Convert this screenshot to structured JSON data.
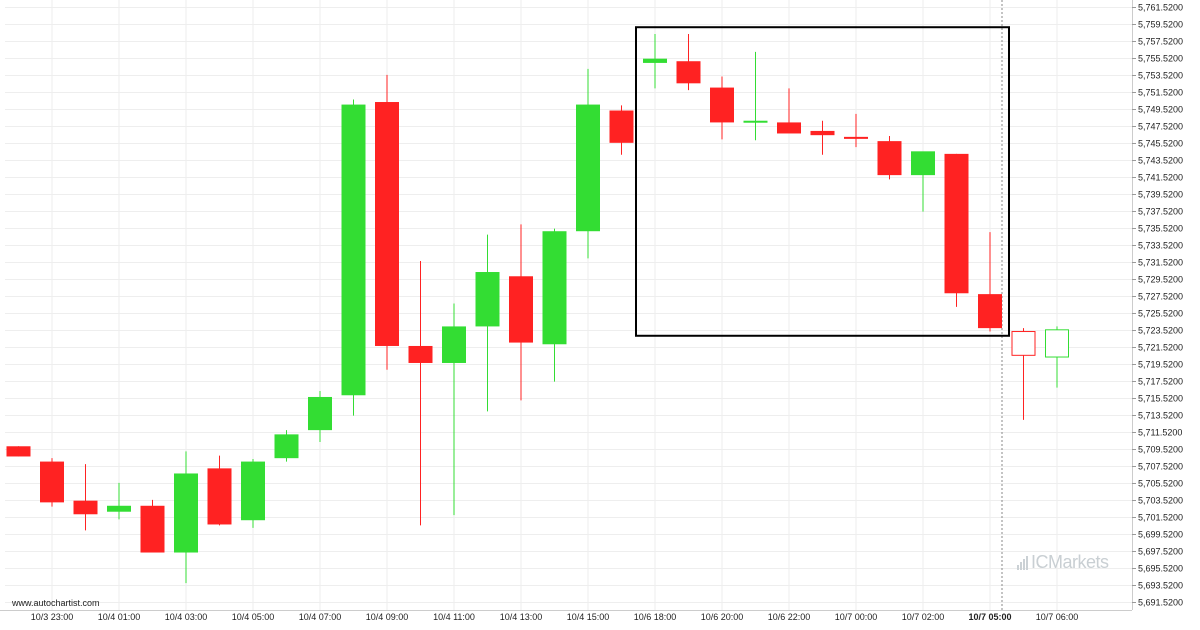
{
  "credit": "www.autochartist.com",
  "brand": {
    "prefix": "IC",
    "name": "Markets"
  },
  "colors": {
    "up": "#33dd33",
    "down": "#ff2222",
    "grid": "#eeeeee",
    "box": "#000000",
    "marker": "#888888"
  },
  "chart_data": {
    "type": "candlestick",
    "ylim": [
      5690.52,
      5762.52
    ],
    "y_ticks": [
      "5,691.5200",
      "5,693.5200",
      "5,695.5200",
      "5,697.5200",
      "5,699.5200",
      "5,701.5200",
      "5,703.5200",
      "5,705.5200",
      "5,707.5200",
      "5,709.5200",
      "5,711.5200",
      "5,713.5200",
      "5,715.5200",
      "5,717.5200",
      "5,719.5200",
      "5,721.5200",
      "5,723.5200",
      "5,725.5200",
      "5,727.5200",
      "5,729.5200",
      "5,731.5200",
      "5,733.5200",
      "5,735.5200",
      "5,737.5200",
      "5,739.5200",
      "5,741.5200",
      "5,743.5200",
      "5,745.5200",
      "5,747.5200",
      "5,749.5200",
      "5,751.5200",
      "5,753.5200",
      "5,755.5200",
      "5,757.5200",
      "5,759.5200",
      "5,761.5200"
    ],
    "x_ticks": [
      {
        "index": 1,
        "label": "10/3 23:00"
      },
      {
        "index": 3,
        "label": "10/4 01:00"
      },
      {
        "index": 5,
        "label": "10/4 03:00"
      },
      {
        "index": 7,
        "label": "10/4 05:00"
      },
      {
        "index": 9,
        "label": "10/4 07:00"
      },
      {
        "index": 11,
        "label": "10/4 09:00"
      },
      {
        "index": 13,
        "label": "10/4 11:00"
      },
      {
        "index": 15,
        "label": "10/4 13:00"
      },
      {
        "index": 17,
        "label": "10/4 15:00"
      },
      {
        "index": 19,
        "label": "10/6 18:00"
      },
      {
        "index": 21,
        "label": "10/6 20:00"
      },
      {
        "index": 23,
        "label": "10/6 22:00"
      },
      {
        "index": 25,
        "label": "10/7 00:00"
      },
      {
        "index": 27,
        "label": "10/7 02:00"
      },
      {
        "index": 29,
        "label": "10/7 05:00",
        "bold": true
      },
      {
        "index": 31,
        "label": "10/7 06:00"
      }
    ],
    "candles": [
      {
        "o": 5709.9,
        "h": 5709.9,
        "l": 5708.7,
        "c": 5708.7
      },
      {
        "o": 5708.1,
        "h": 5708.5,
        "l": 5702.8,
        "c": 5703.3
      },
      {
        "o": 5703.5,
        "h": 5707.8,
        "l": 5700.0,
        "c": 5701.9
      },
      {
        "o": 5702.2,
        "h": 5705.6,
        "l": 5701.3,
        "c": 5702.9
      },
      {
        "o": 5702.9,
        "h": 5703.6,
        "l": 5697.4,
        "c": 5697.4
      },
      {
        "o": 5697.4,
        "h": 5709.3,
        "l": 5693.8,
        "c": 5706.7
      },
      {
        "o": 5707.3,
        "h": 5708.8,
        "l": 5700.6,
        "c": 5700.7
      },
      {
        "o": 5701.2,
        "h": 5708.4,
        "l": 5700.3,
        "c": 5708.1
      },
      {
        "o": 5708.5,
        "h": 5711.8,
        "l": 5708.1,
        "c": 5711.3
      },
      {
        "o": 5711.8,
        "h": 5716.4,
        "l": 5710.4,
        "c": 5715.7
      },
      {
        "o": 5715.9,
        "h": 5750.7,
        "l": 5713.5,
        "c": 5750.1
      },
      {
        "o": 5750.4,
        "h": 5753.6,
        "l": 5718.9,
        "c": 5721.7
      },
      {
        "o": 5721.7,
        "h": 5731.7,
        "l": 5700.6,
        "c": 5719.7
      },
      {
        "o": 5719.7,
        "h": 5726.7,
        "l": 5701.8,
        "c": 5724.0
      },
      {
        "o": 5724.0,
        "h": 5734.8,
        "l": 5714.0,
        "c": 5730.4
      },
      {
        "o": 5729.9,
        "h": 5736.0,
        "l": 5715.3,
        "c": 5722.1
      },
      {
        "o": 5721.9,
        "h": 5735.5,
        "l": 5717.5,
        "c": 5735.2
      },
      {
        "o": 5735.2,
        "h": 5754.3,
        "l": 5732.0,
        "c": 5750.1
      },
      {
        "o": 5749.4,
        "h": 5750.0,
        "l": 5744.2,
        "c": 5745.6
      },
      {
        "o": 5755.0,
        "h": 5758.4,
        "l": 5752.0,
        "c": 5755.5
      },
      {
        "o": 5755.2,
        "h": 5758.4,
        "l": 5751.8,
        "c": 5752.6
      },
      {
        "o": 5752.1,
        "h": 5753.4,
        "l": 5746.0,
        "c": 5748.0
      },
      {
        "o": 5748.2,
        "h": 5756.3,
        "l": 5745.9,
        "c": 5748.2
      },
      {
        "o": 5748.0,
        "h": 5752.0,
        "l": 5746.8,
        "c": 5746.7
      },
      {
        "o": 5747.0,
        "h": 5748.2,
        "l": 5744.2,
        "c": 5746.5
      },
      {
        "o": 5746.3,
        "h": 5749.0,
        "l": 5745.1,
        "c": 5746.2
      },
      {
        "o": 5745.8,
        "h": 5746.4,
        "l": 5741.3,
        "c": 5741.8
      },
      {
        "o": 5741.8,
        "h": 5744.5,
        "l": 5737.5,
        "c": 5744.6
      },
      {
        "o": 5744.3,
        "h": 5744.3,
        "l": 5726.3,
        "c": 5727.9
      },
      {
        "o": 5727.8,
        "h": 5735.1,
        "l": 5723.4,
        "c": 5723.8
      },
      {
        "o": 5723.4,
        "h": 5723.8,
        "l": 5713.0,
        "c": 5720.6
      },
      {
        "o": 5720.4,
        "h": 5724.0,
        "l": 5716.8,
        "c": 5723.6
      }
    ],
    "future_start_index": 30,
    "highlight_box": {
      "from_index": 19,
      "to_index": 29,
      "top": 5759.2,
      "bottom": 5722.9
    },
    "current_time_index": 29
  }
}
